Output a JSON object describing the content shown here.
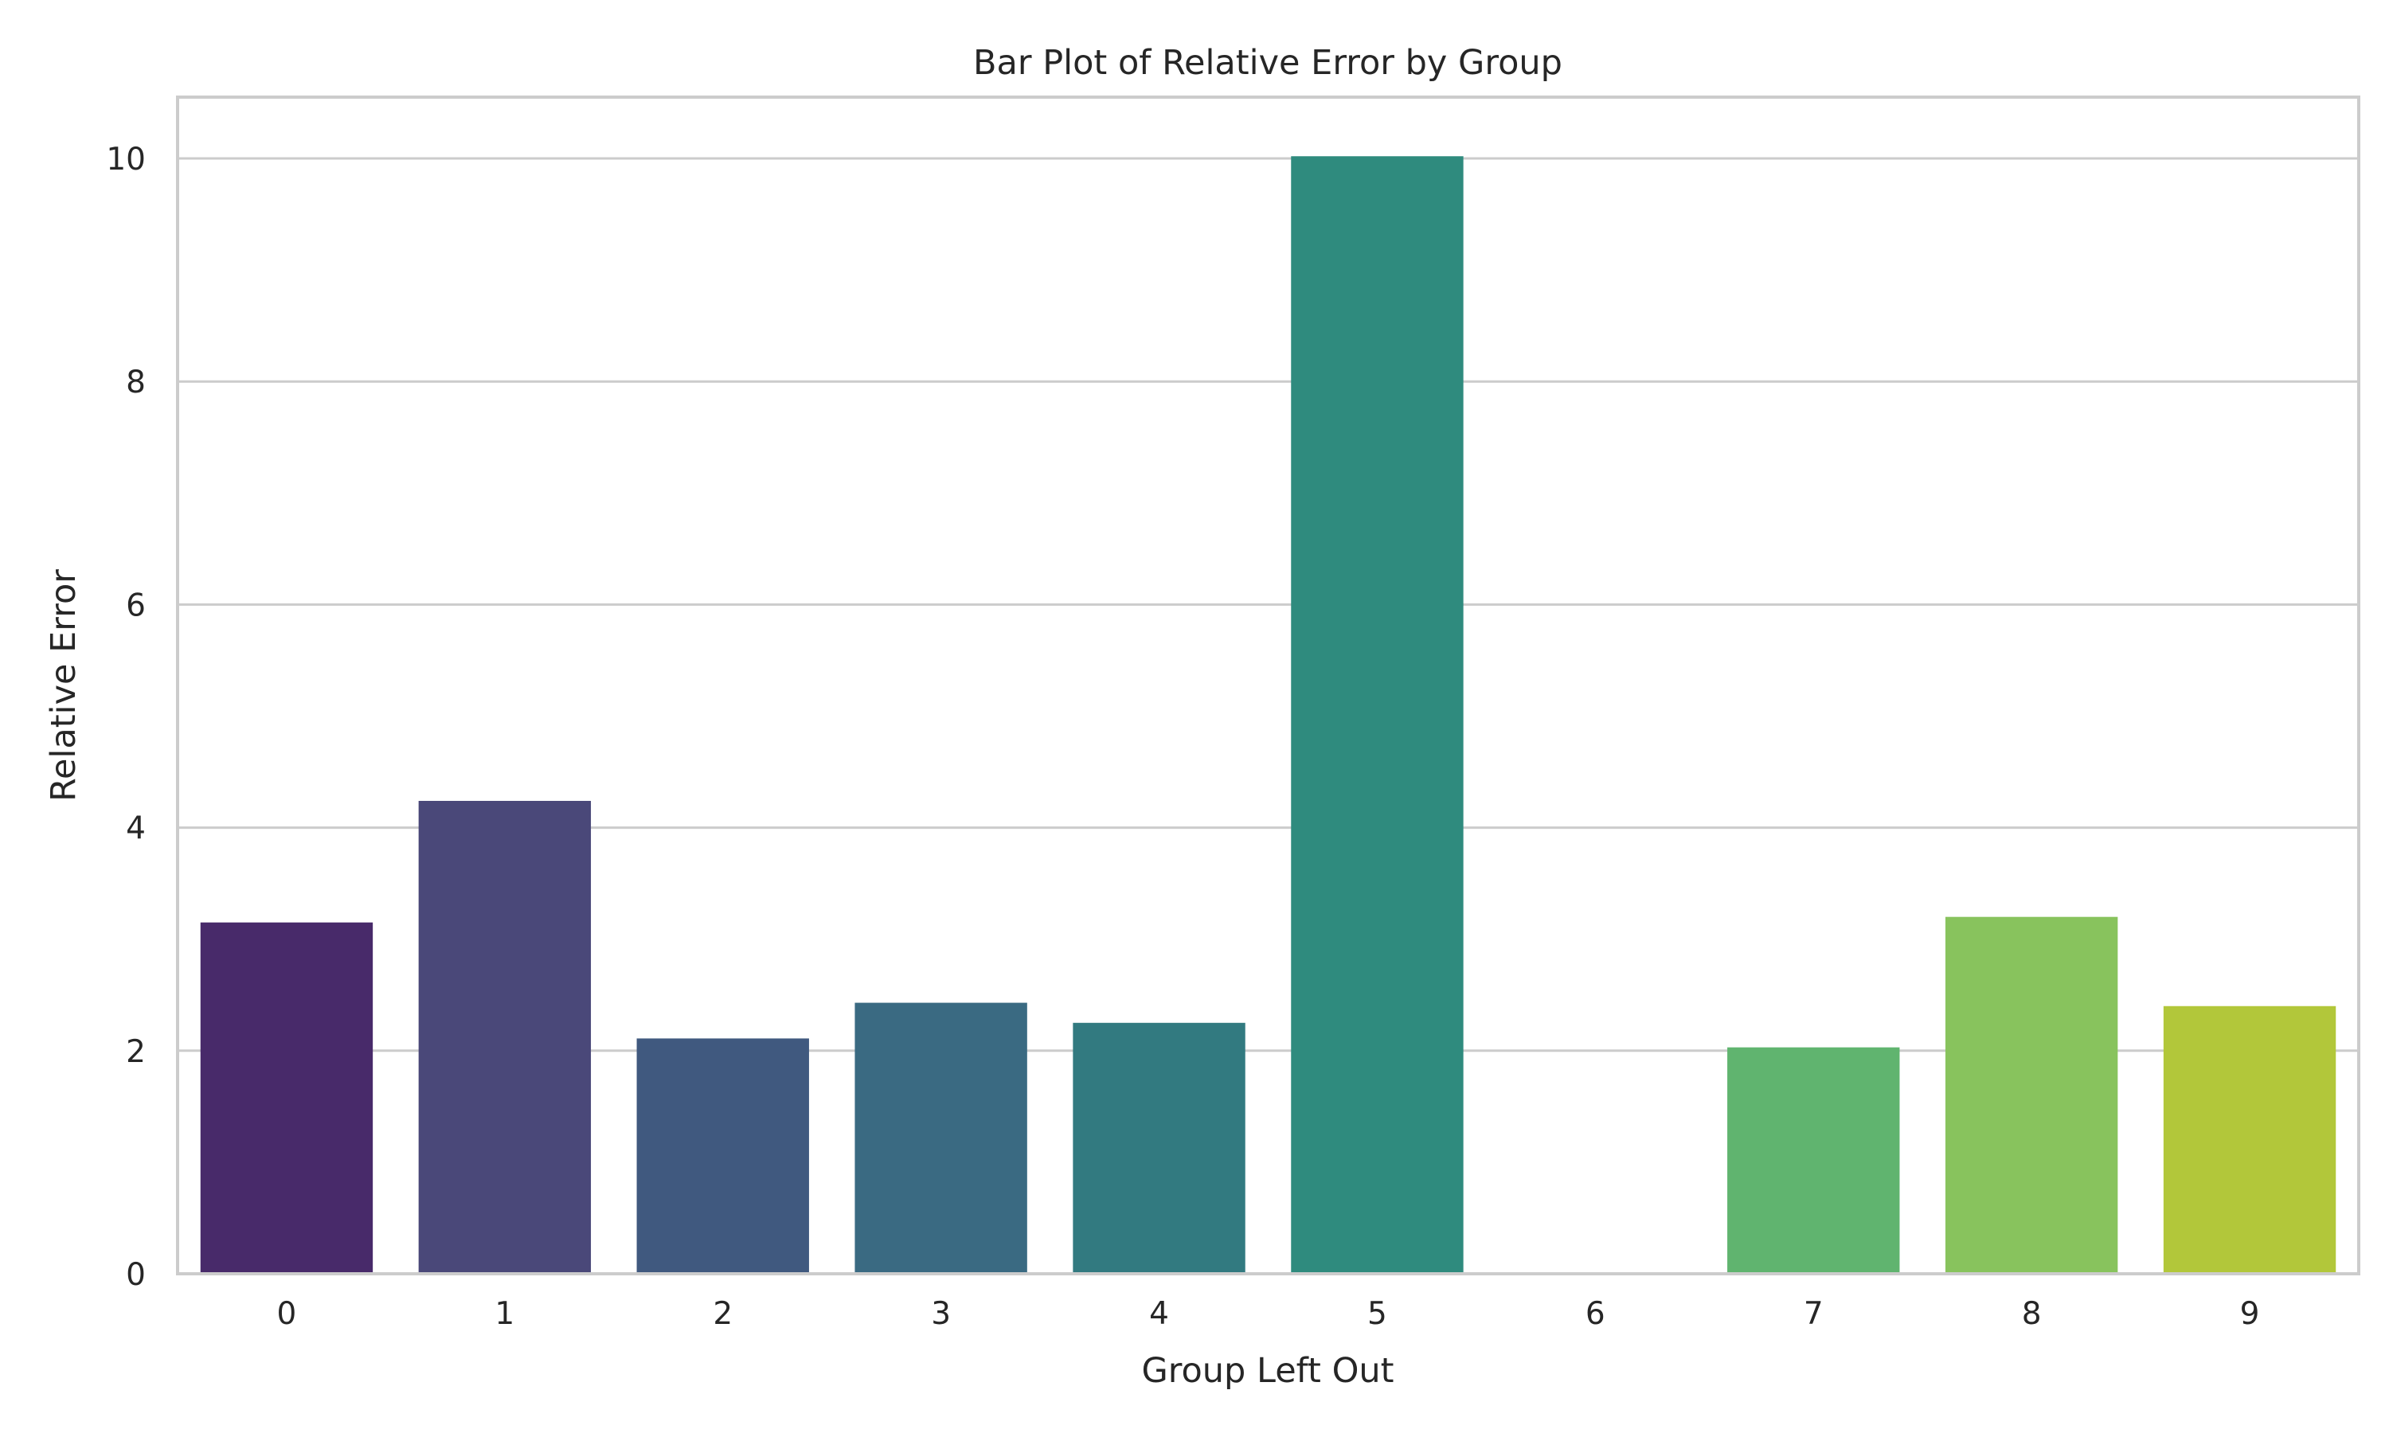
{
  "chart_data": {
    "type": "bar",
    "title": "Bar Plot of Relative Error by Group",
    "xlabel": "Group Left Out",
    "ylabel": "Relative Error",
    "categories": [
      "0",
      "1",
      "2",
      "3",
      "4",
      "5",
      "6",
      "7",
      "8",
      "9"
    ],
    "values": [
      3.15,
      4.24,
      2.11,
      2.43,
      2.25,
      10.02,
      0,
      2.03,
      3.2,
      2.4
    ],
    "colors": [
      "#482a6a",
      "#4a4879",
      "#40597f",
      "#3a6a82",
      "#327a80",
      "#2f8b7e",
      "#3ea377",
      "#60b46f",
      "#88c35d",
      "#b2c73a"
    ],
    "ylim": [
      0,
      10.55
    ],
    "yticks": [
      0,
      2,
      4,
      6,
      8,
      10
    ],
    "grid": "y",
    "legend": "none"
  }
}
